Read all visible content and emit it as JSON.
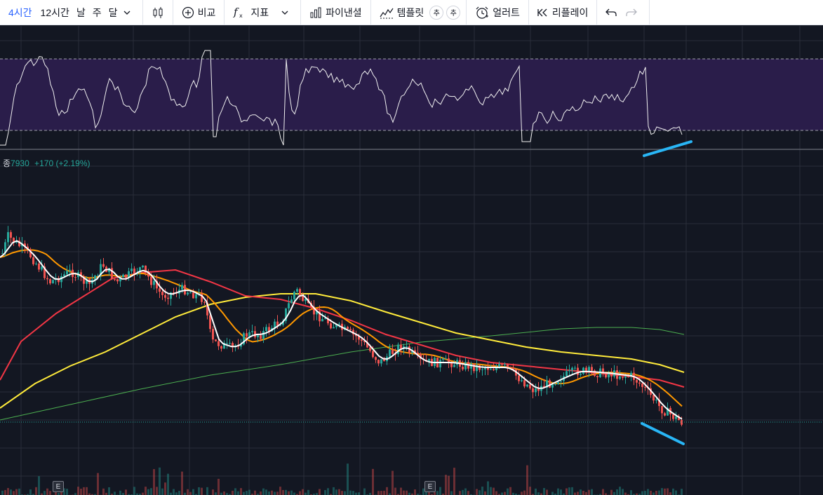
{
  "toolbar": {
    "intervals": [
      "4시간",
      "12시간",
      "날",
      "주",
      "달"
    ],
    "active_interval": "4시간",
    "compare_label": "비교",
    "indicators_label": "지표",
    "pine_label": "파이낸셜",
    "templates_label": "템플릿",
    "template_badges": [
      "추",
      "추"
    ],
    "alert_label": "얼러트",
    "replay_label": "리플레이"
  },
  "icons": {
    "dropdown": "chevron-down-icon",
    "chart_type": "candlestick-icon",
    "compare": "plus-circle-icon",
    "indicators": "fx-icon",
    "pine": "bar-chart-icon",
    "templates": "template-icon",
    "alert": "alarm-clock-icon",
    "replay": "rewind-icon",
    "undo": "undo-icon",
    "redo": "redo-icon"
  },
  "volume_legend": {
    "name": "종",
    "value": "7930",
    "change": "+170 (+2.19%)"
  },
  "earnings_marker_label": "E",
  "colors": {
    "background": "#131722",
    "rsi_band": "#2a1d4a",
    "up": "#26a69a",
    "down": "#ef5350",
    "ma_white": "#ffffff",
    "ma_orange": "#ff9800",
    "ma_red": "#f23645",
    "ma_yellow": "#ffeb3b",
    "ma_green": "#4caf50",
    "divergence": "#29b6f6",
    "accent": "#2962ff"
  }
}
